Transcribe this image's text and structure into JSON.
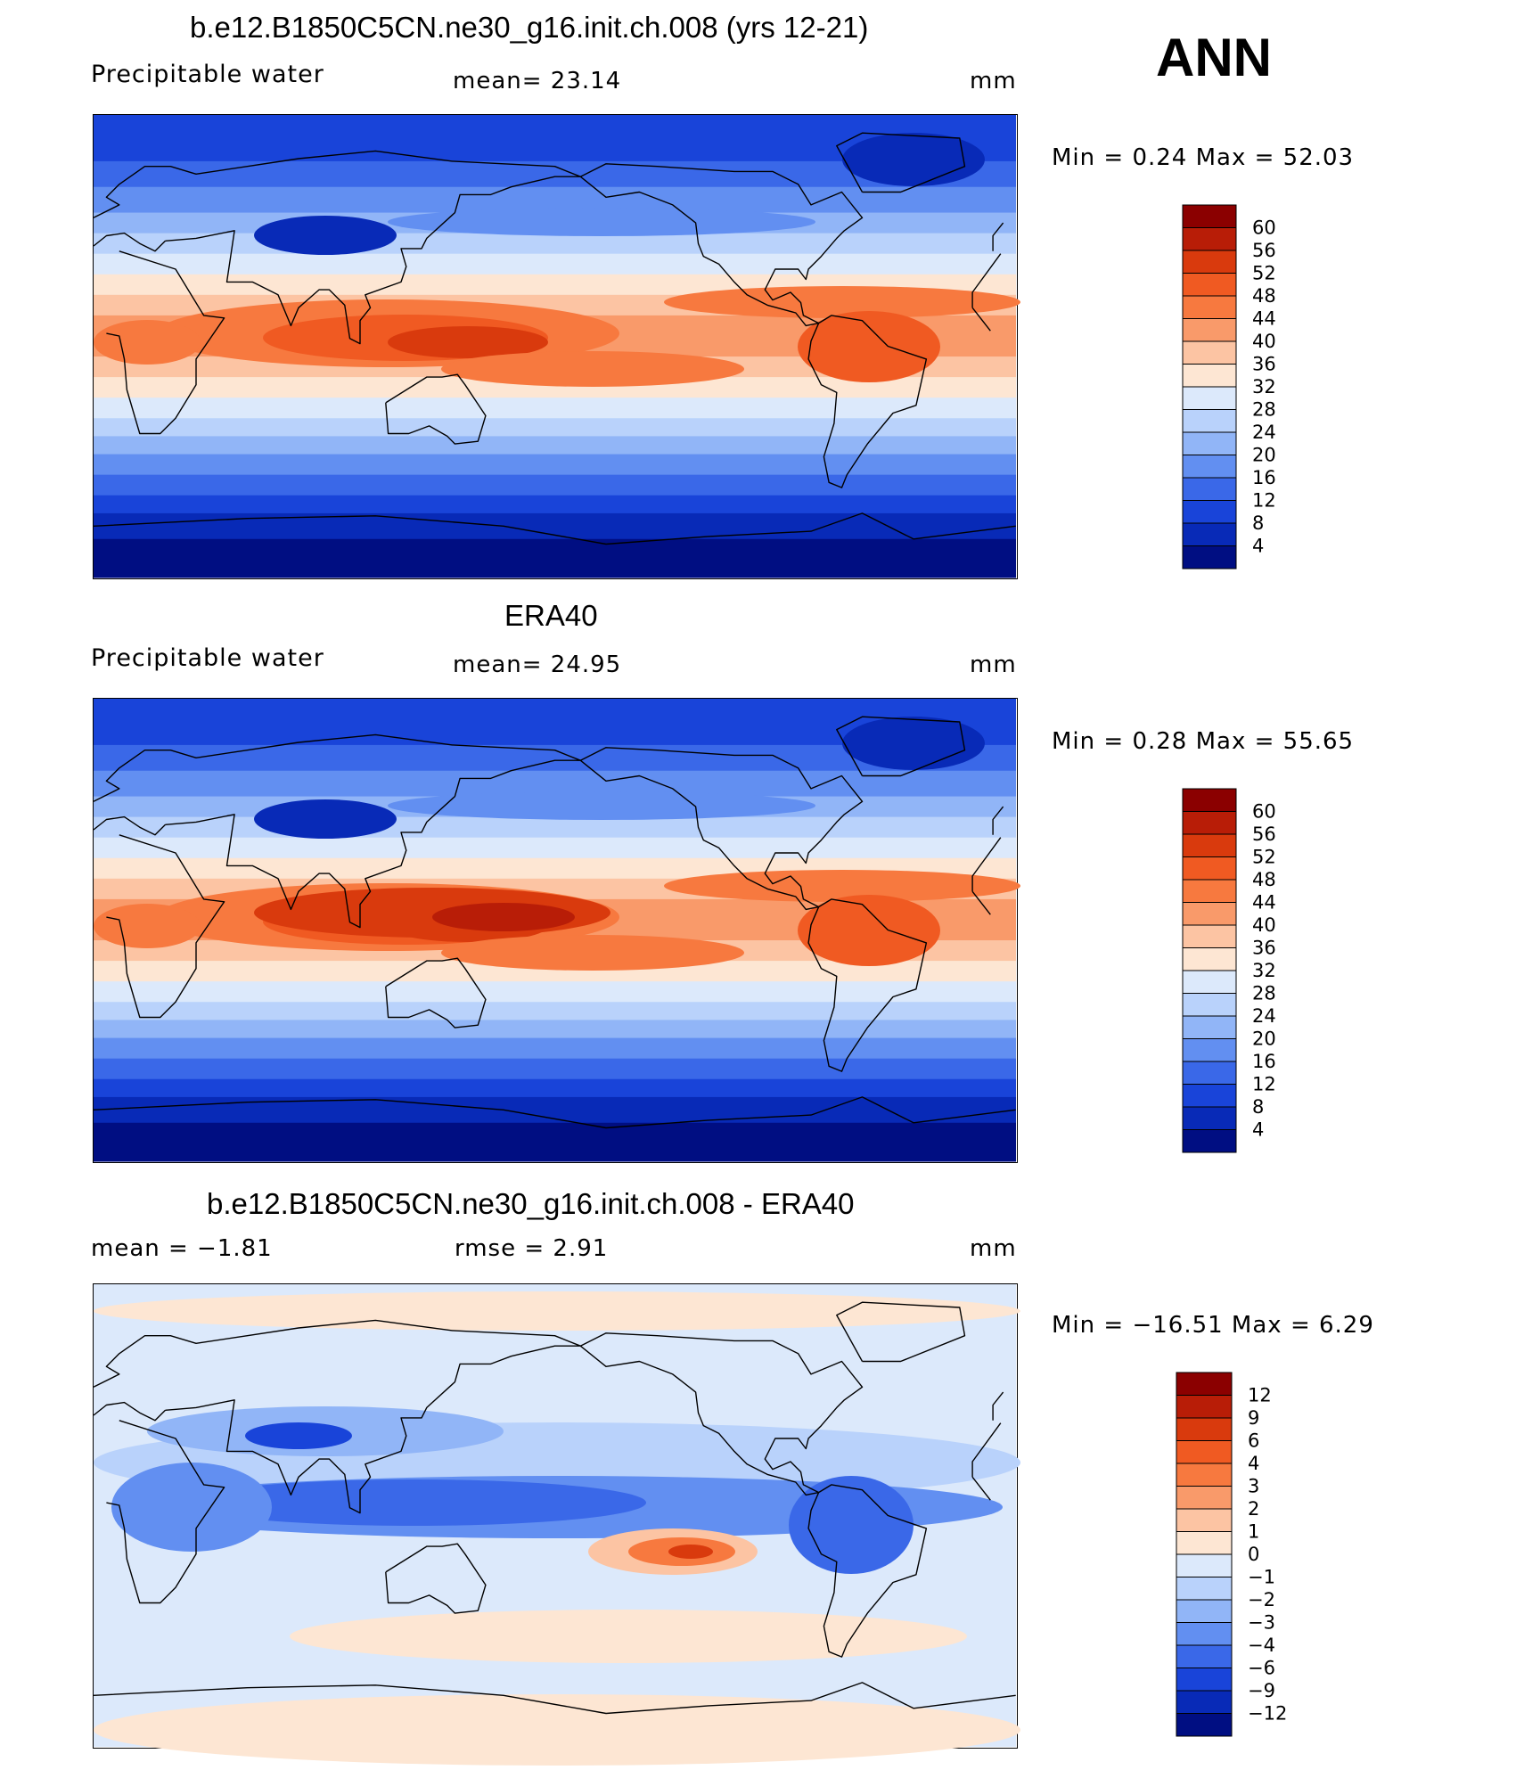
{
  "season": "ANN",
  "panels": [
    {
      "title": "b.e12.B1850C5CN.ne30_g16.init.ch.008 (yrs 12-21)",
      "left_label": "Precipitable  water",
      "mid_label": "mean=   23.14",
      "units": "mm",
      "minmax": "Min  =    0.24  Max  =    52.03",
      "type": "field",
      "colorbar": {
        "colors": [
          "#8b0000",
          "#b81d07",
          "#d93a0d",
          "#f05a22",
          "#f7793f",
          "#f99a6a",
          "#fcc4a3",
          "#fde6d3",
          "#dce9fb",
          "#b9d2fb",
          "#91b5f7",
          "#628ff1",
          "#3a68e8",
          "#1944d9",
          "#082ab7",
          "#000e82"
        ],
        "labels": [
          "60",
          "56",
          "52",
          "48",
          "44",
          "40",
          "36",
          "32",
          "28",
          "24",
          "20",
          "16",
          "12",
          "8",
          "4"
        ]
      }
    },
    {
      "title": "ERA40",
      "left_label": "Precipitable  water",
      "mid_label": "mean=   24.95",
      "units": "mm",
      "minmax": "Min  =    0.28  Max  =    55.65",
      "type": "field",
      "colorbar": {
        "colors": [
          "#8b0000",
          "#b81d07",
          "#d93a0d",
          "#f05a22",
          "#f7793f",
          "#f99a6a",
          "#fcc4a3",
          "#fde6d3",
          "#dce9fb",
          "#b9d2fb",
          "#91b5f7",
          "#628ff1",
          "#3a68e8",
          "#1944d9",
          "#082ab7",
          "#000e82"
        ],
        "labels": [
          "60",
          "56",
          "52",
          "48",
          "44",
          "40",
          "36",
          "32",
          "28",
          "24",
          "20",
          "16",
          "12",
          "8",
          "4"
        ]
      }
    },
    {
      "title": "b.e12.B1850C5CN.ne30_g16.init.ch.008 - ERA40",
      "left_label": "mean  =    −1.81",
      "mid_label": "rmse  =     2.91",
      "units": "mm",
      "minmax": "Min  =  −16.51  Max  =     6.29",
      "type": "diff",
      "colorbar": {
        "colors": [
          "#8b0000",
          "#b81d07",
          "#d93a0d",
          "#f05a22",
          "#f7793f",
          "#f99a6a",
          "#fcc4a3",
          "#fde6d3",
          "#dce9fb",
          "#b9d2fb",
          "#91b5f7",
          "#628ff1",
          "#3a68e8",
          "#1944d9",
          "#082ab7",
          "#000e82"
        ],
        "labels": [
          "12",
          "9",
          "6",
          "4",
          "3",
          "2",
          "1",
          "0",
          "−1",
          "−2",
          "−3",
          "−4",
          "−6",
          "−9",
          "−12"
        ]
      }
    }
  ]
}
